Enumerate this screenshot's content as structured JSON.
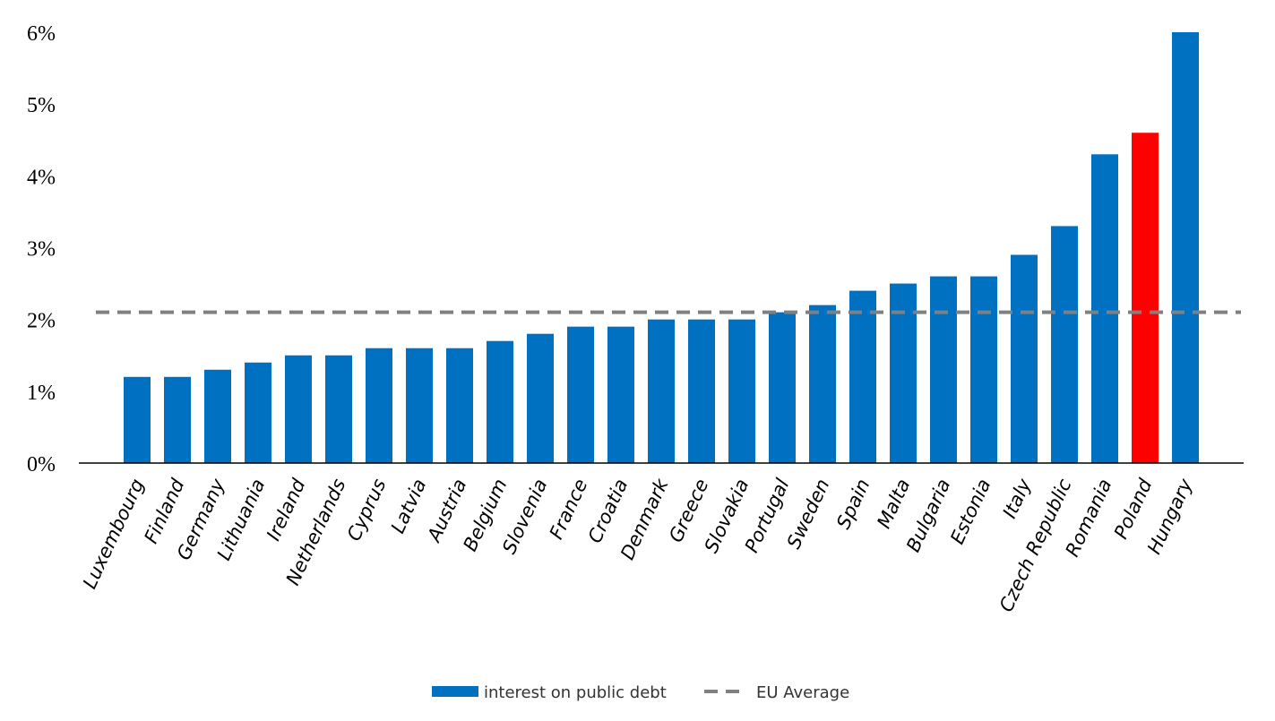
{
  "chart_data": {
    "type": "bar",
    "categories": [
      "Luxembourg",
      "Finland",
      "Germany",
      "Lithuania",
      "Ireland",
      "Netherlands",
      "Cyprus",
      "Latvia",
      "Austria",
      "Belgium",
      "Slovenia",
      "France",
      "Croatia",
      "Denmark",
      "Greece",
      "Slovakia",
      "Portugal",
      "Sweden",
      "Spain",
      "Malta",
      "Bulgaria",
      "Estonia",
      "Italy",
      "Czech Republic",
      "Romania",
      "Poland",
      "Hungary"
    ],
    "series": [
      {
        "name": "interest on public debt",
        "values": [
          1.2,
          1.2,
          1.3,
          1.4,
          1.5,
          1.5,
          1.6,
          1.6,
          1.6,
          1.7,
          1.8,
          1.9,
          1.9,
          2.0,
          2.0,
          2.0,
          2.1,
          2.2,
          2.4,
          2.5,
          2.6,
          2.6,
          2.9,
          3.3,
          4.3,
          4.6,
          6.0
        ],
        "color": "#0070C0",
        "highlight": {
          "category": "Poland",
          "color": "#FF0000"
        }
      }
    ],
    "reference_line": {
      "name": "EU Average",
      "value": 2.1,
      "color": "#808080",
      "style": "dashed"
    },
    "ylim": [
      0,
      6
    ],
    "y_ticks": [
      "0%",
      "1%",
      "2%",
      "3%",
      "4%",
      "5%",
      "6%"
    ],
    "grid": false,
    "legend": "bottom",
    "title": "",
    "xlabel": "",
    "ylabel": ""
  }
}
